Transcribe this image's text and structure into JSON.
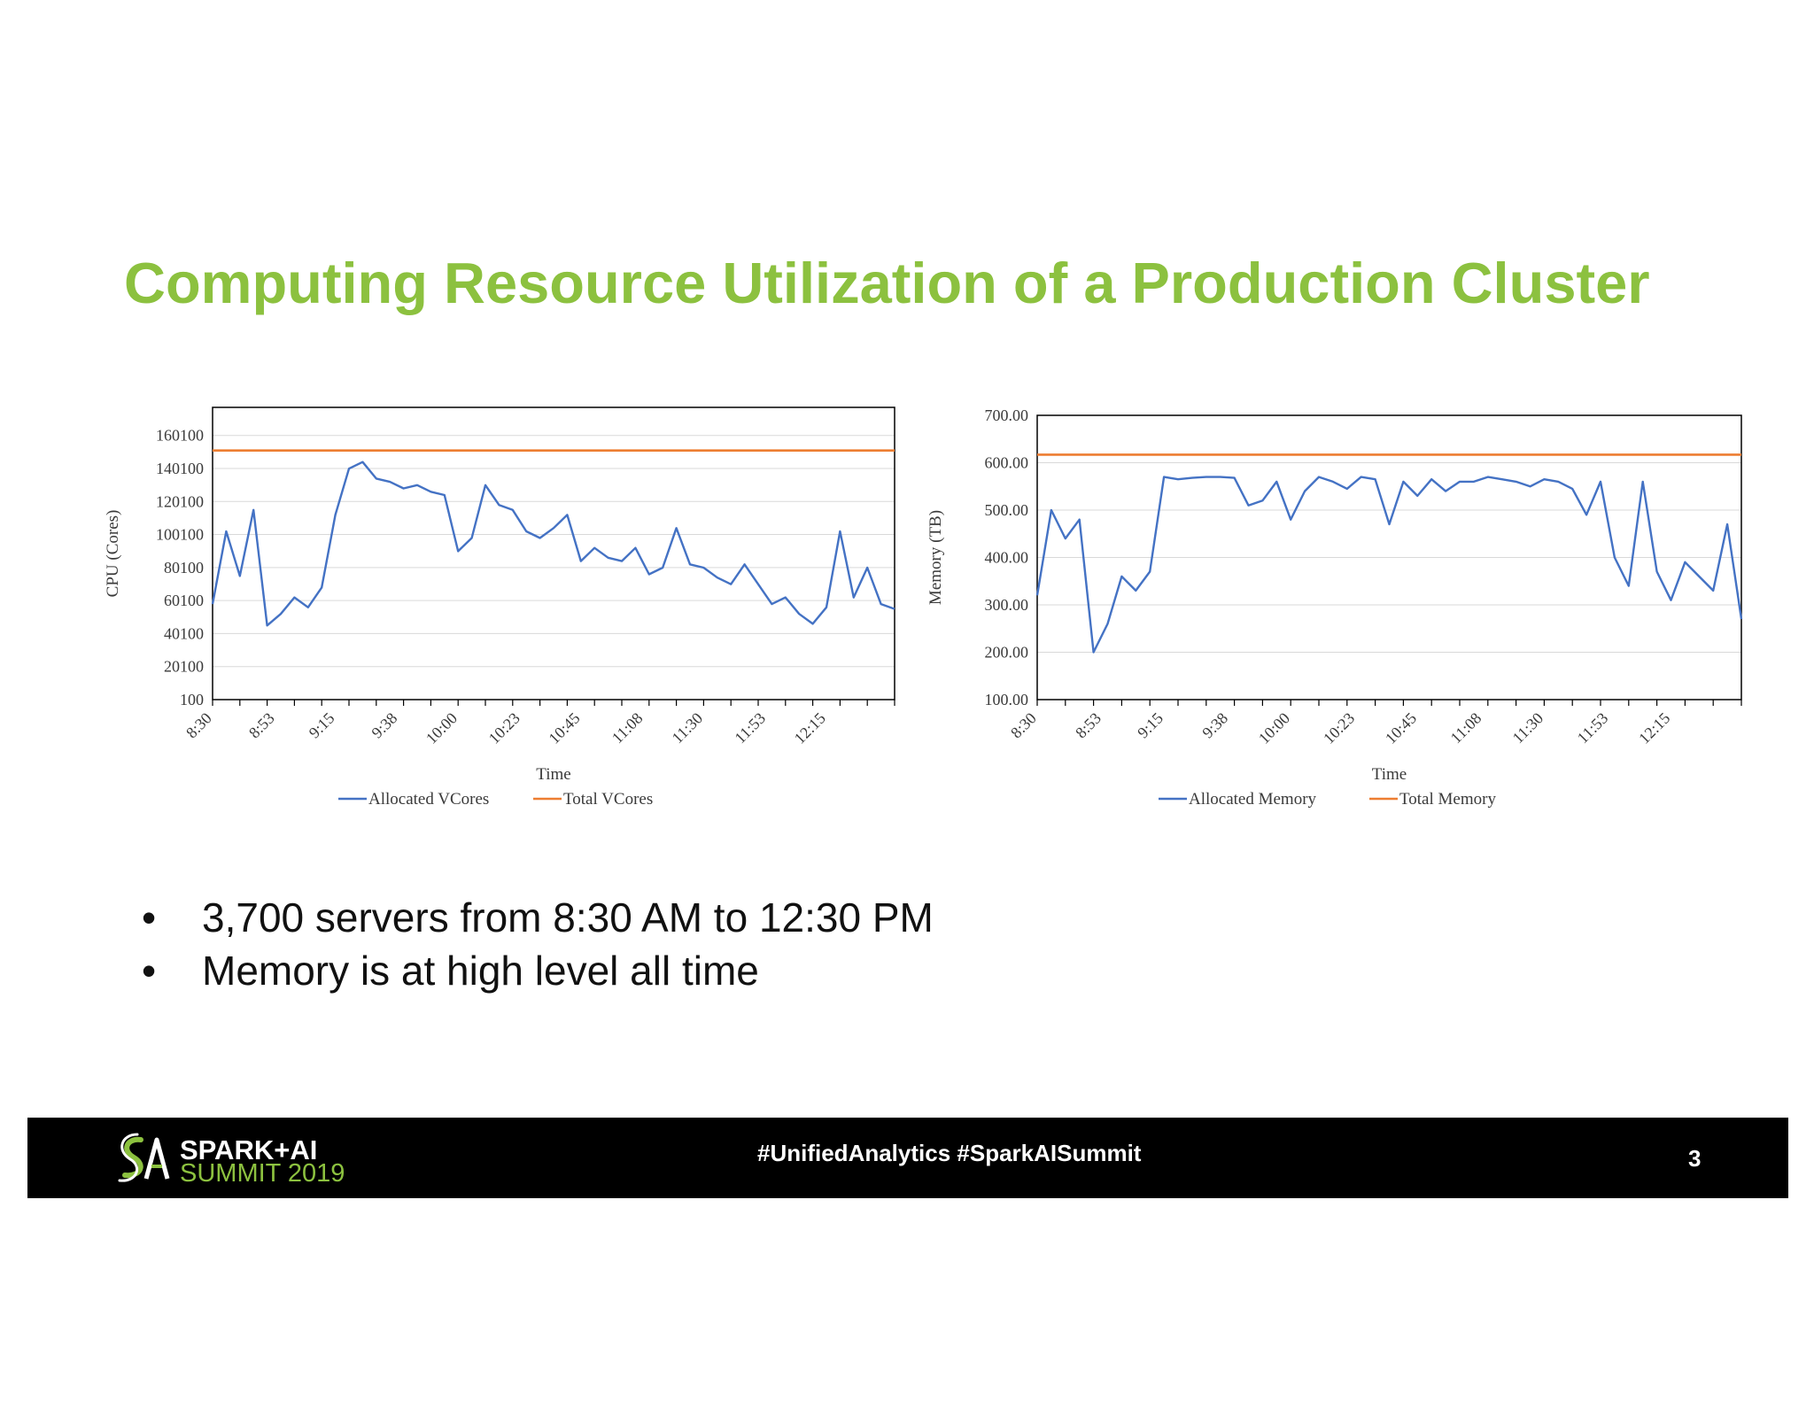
{
  "slide": {
    "title": "Computing Resource Utilization of a Production Cluster",
    "bullets": [
      "3,700 servers from 8:30 AM to 12:30 PM",
      "Memory is at high level all time"
    ],
    "bullet_char": "•"
  },
  "footer": {
    "logo_line1": "SPARK+AI",
    "logo_line2": "SUMMIT 2019",
    "hashtags": "#UnifiedAnalytics #SparkAISummit",
    "page_number": "3"
  },
  "colors": {
    "title": "#8cc13f",
    "allocated": "#4472c4",
    "total": "#ed7d31",
    "footer_bg": "#000000",
    "grid": "#d9d9d9"
  },
  "chart_data": [
    {
      "type": "line",
      "xlabel": "Time",
      "ylabel": "CPU (Cores)",
      "x_ticks": [
        "8:30",
        "8:53",
        "9:15",
        "9:38",
        "10:00",
        "10:23",
        "10:45",
        "11:08",
        "11:30",
        "11:53",
        "12:15"
      ],
      "x_range": [
        "8:30",
        "12:40"
      ],
      "y_ticks": [
        "100",
        "20100",
        "40100",
        "60100",
        "80100",
        "100100",
        "120100",
        "140100",
        "160100"
      ],
      "ylim": [
        100,
        177100
      ],
      "grid": true,
      "legend_position": "bottom",
      "series": [
        {
          "name": "Allocated VCores",
          "x": [
            "8:30",
            "8:35",
            "8:40",
            "8:45",
            "8:50",
            "8:55",
            "9:00",
            "9:05",
            "9:10",
            "9:15",
            "9:20",
            "9:25",
            "9:30",
            "9:35",
            "9:40",
            "9:45",
            "9:50",
            "9:55",
            "10:00",
            "10:05",
            "10:10",
            "10:15",
            "10:20",
            "10:25",
            "10:30",
            "10:35",
            "10:40",
            "10:45",
            "10:50",
            "10:55",
            "11:00",
            "11:05",
            "11:10",
            "11:15",
            "11:20",
            "11:25",
            "11:30",
            "11:35",
            "11:40",
            "11:45",
            "11:50",
            "11:55",
            "12:00",
            "12:05",
            "12:10",
            "12:15",
            "12:20",
            "12:25",
            "12:30",
            "12:35",
            "12:40"
          ],
          "values": [
            58000,
            102000,
            75000,
            115000,
            45000,
            52000,
            62000,
            56000,
            68000,
            112000,
            140000,
            144000,
            134000,
            132000,
            128000,
            130000,
            126000,
            124000,
            90000,
            98000,
            130000,
            118000,
            115000,
            102000,
            98000,
            104000,
            112000,
            84000,
            92000,
            86000,
            84000,
            92000,
            76000,
            80000,
            104000,
            82000,
            80000,
            74000,
            70000,
            82000,
            70000,
            58000,
            62000,
            52000,
            46000,
            56000,
            102000,
            62000,
            80000,
            58000,
            55000
          ]
        },
        {
          "name": "Total VCores",
          "x": [
            "8:30",
            "12:40"
          ],
          "values": [
            151000,
            151000
          ]
        }
      ]
    },
    {
      "type": "line",
      "xlabel": "Time",
      "ylabel": "Memory (TB)",
      "x_ticks": [
        "8:30",
        "8:53",
        "9:15",
        "9:38",
        "10:00",
        "10:23",
        "10:45",
        "11:08",
        "11:30",
        "11:53",
        "12:15"
      ],
      "x_range": [
        "8:30",
        "12:40"
      ],
      "y_ticks": [
        "100.00",
        "200.00",
        "300.00",
        "400.00",
        "500.00",
        "600.00",
        "700.00"
      ],
      "ylim": [
        100,
        700
      ],
      "grid": true,
      "legend_position": "bottom",
      "series": [
        {
          "name": "Allocated Memory",
          "x": [
            "8:30",
            "8:35",
            "8:40",
            "8:45",
            "8:50",
            "8:55",
            "9:00",
            "9:05",
            "9:10",
            "9:15",
            "9:20",
            "9:25",
            "9:30",
            "9:35",
            "9:40",
            "9:45",
            "9:50",
            "9:55",
            "10:00",
            "10:05",
            "10:10",
            "10:15",
            "10:20",
            "10:25",
            "10:30",
            "10:35",
            "10:40",
            "10:45",
            "10:50",
            "10:55",
            "11:00",
            "11:05",
            "11:10",
            "11:15",
            "11:20",
            "11:25",
            "11:30",
            "11:35",
            "11:40",
            "11:45",
            "11:50",
            "11:55",
            "12:00",
            "12:05",
            "12:10",
            "12:15",
            "12:20",
            "12:25",
            "12:30",
            "12:35",
            "12:40"
          ],
          "values": [
            320,
            500,
            440,
            480,
            200,
            260,
            360,
            330,
            370,
            570,
            565,
            568,
            570,
            570,
            568,
            510,
            520,
            560,
            480,
            540,
            570,
            560,
            545,
            570,
            565,
            470,
            560,
            530,
            565,
            540,
            560,
            560,
            570,
            565,
            560,
            550,
            565,
            560,
            545,
            490,
            560,
            400,
            340,
            560,
            370,
            310,
            390,
            360,
            330,
            470,
            270
          ]
        },
        {
          "name": "Total Memory",
          "x": [
            "8:30",
            "12:40"
          ],
          "values": [
            617,
            617
          ]
        }
      ]
    }
  ]
}
